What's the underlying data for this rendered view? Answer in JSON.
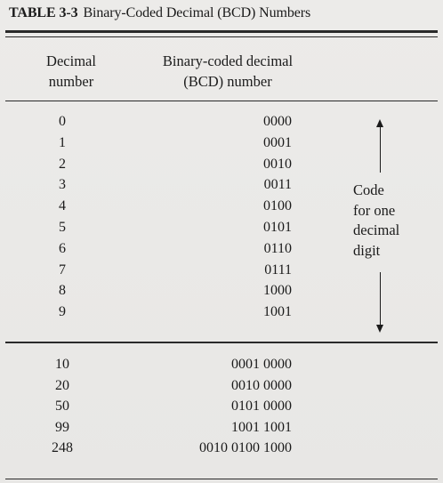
{
  "table": {
    "number": "TABLE 3-3",
    "title": "Binary-Coded Decimal (BCD) Numbers",
    "headers": {
      "decimal": "Decimal\nnumber",
      "bcd": "Binary-coded decimal\n(BCD) number"
    },
    "single_digit_rows": [
      {
        "decimal": "0",
        "bcd": "0000"
      },
      {
        "decimal": "1",
        "bcd": "0001"
      },
      {
        "decimal": "2",
        "bcd": "0010"
      },
      {
        "decimal": "3",
        "bcd": "0011"
      },
      {
        "decimal": "4",
        "bcd": "0100"
      },
      {
        "decimal": "5",
        "bcd": "0101"
      },
      {
        "decimal": "6",
        "bcd": "0110"
      },
      {
        "decimal": "7",
        "bcd": "0111"
      },
      {
        "decimal": "8",
        "bcd": "1000"
      },
      {
        "decimal": "9",
        "bcd": "1001"
      }
    ],
    "multi_digit_rows": [
      {
        "decimal": "10",
        "bcd": "0001 0000"
      },
      {
        "decimal": "20",
        "bcd": "0010 0000"
      },
      {
        "decimal": "50",
        "bcd": "0101 0000"
      },
      {
        "decimal": "99",
        "bcd": "1001 1001"
      },
      {
        "decimal": "248",
        "bcd": "0010 0100 1000"
      }
    ],
    "annotation": "Code\nfor one\ndecimal\ndigit"
  }
}
